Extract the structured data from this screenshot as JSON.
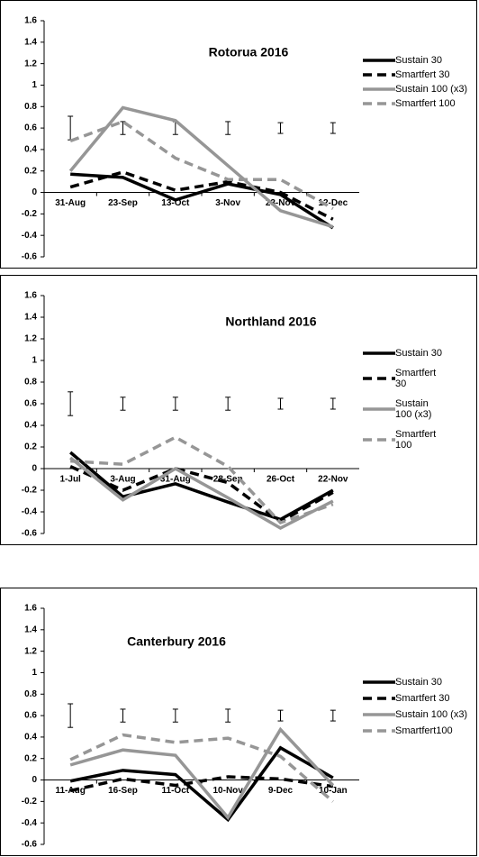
{
  "chart_data": [
    {
      "type": "line",
      "title": "Rotorua 2016",
      "categories": [
        "31-Aug",
        "23-Sep",
        "13-Oct",
        "3-Nov",
        "23-Nov",
        "12-Dec"
      ],
      "series": [
        {
          "name": "Sustain 30",
          "color": "#000000",
          "style": "solid",
          "values": [
            0.17,
            0.14,
            -0.07,
            0.08,
            -0.02,
            -0.33
          ]
        },
        {
          "name": "Smartfert 30",
          "color": "#000000",
          "style": "dashed",
          "values": [
            0.05,
            0.19,
            0.02,
            0.1,
            0,
            -0.25
          ]
        },
        {
          "name": "Sustain 100 (x3)",
          "color": "#969696",
          "style": "solid",
          "values": [
            0.2,
            0.79,
            0.67,
            0.25,
            -0.17,
            -0.32
          ]
        },
        {
          "name": "Smartfert 100",
          "color": "#969696",
          "style": "dashed",
          "values": [
            0.48,
            0.66,
            0.32,
            0.12,
            0.12,
            -0.15
          ]
        }
      ],
      "error_bars": {
        "color": "#000000",
        "values": [
          0.6,
          0.6,
          0.6,
          0.6,
          0.6,
          0.6
        ],
        "errors": [
          0.11,
          0.06,
          0.06,
          0.06,
          0.05,
          0.05
        ]
      },
      "ylim": [
        -0.6,
        1.6
      ],
      "yticks": [
        -0.6,
        -0.4,
        -0.2,
        0,
        0.2,
        0.4,
        0.6,
        0.8,
        1,
        1.2,
        1.4,
        1.6
      ],
      "grid": false
    },
    {
      "type": "line",
      "title": "Northland 2016",
      "categories": [
        "1-Jul",
        "3-Aug",
        "31-Aug",
        "28-Sep",
        "26-Oct",
        "22-Nov"
      ],
      "series": [
        {
          "name": "Sustain 30",
          "color": "#000000",
          "style": "solid",
          "values": [
            0.15,
            -0.26,
            -0.14,
            -0.31,
            -0.47,
            -0.2
          ]
        },
        {
          "name": "Smartfert 30",
          "color": "#000000",
          "style": "dashed",
          "values": [
            0.02,
            -0.2,
            0,
            -0.13,
            -0.49,
            -0.22
          ]
        },
        {
          "name": "Sustain 100 (x3)",
          "color": "#969696",
          "style": "solid",
          "values": [
            0.1,
            -0.29,
            0,
            -0.27,
            -0.55,
            -0.3
          ]
        },
        {
          "name": "Smartfert 100",
          "color": "#969696",
          "style": "dashed",
          "values": [
            0.07,
            0.04,
            0.29,
            0.02,
            -0.5,
            -0.33
          ]
        }
      ],
      "error_bars": {
        "color": "#000000",
        "values": [
          0.6,
          0.6,
          0.6,
          0.6,
          0.6,
          0.6
        ],
        "errors": [
          0.11,
          0.06,
          0.06,
          0.06,
          0.05,
          0.05
        ]
      },
      "ylim": [
        -0.6,
        1.6
      ],
      "yticks": [
        -0.6,
        -0.4,
        -0.2,
        0,
        0.2,
        0.4,
        0.6,
        0.8,
        1,
        1.2,
        1.4,
        1.6
      ],
      "grid": false
    },
    {
      "type": "line",
      "title": "Canterbury 2016",
      "categories": [
        "11-Aug",
        "16-Sep",
        "11-Oct",
        "10-Nov",
        "9-Dec",
        "10-Jan"
      ],
      "series": [
        {
          "name": "Sustain 30",
          "color": "#000000",
          "style": "solid",
          "values": [
            -0.01,
            0.09,
            0.05,
            -0.37,
            0.3,
            0.02
          ]
        },
        {
          "name": "Smartfert 30",
          "color": "#000000",
          "style": "dashed",
          "values": [
            -0.1,
            0.01,
            -0.05,
            0.03,
            0.01,
            -0.06
          ]
        },
        {
          "name": "Sustain 100 (x3)",
          "color": "#969696",
          "style": "solid",
          "values": [
            0.14,
            0.28,
            0.23,
            -0.35,
            0.47,
            -0.05
          ]
        },
        {
          "name": "Smartfert100",
          "color": "#969696",
          "style": "dashed",
          "values": [
            0.19,
            0.42,
            0.35,
            0.39,
            0.22,
            -0.2
          ]
        }
      ],
      "error_bars": {
        "color": "#000000",
        "values": [
          0.6,
          0.6,
          0.6,
          0.6,
          0.6,
          0.6
        ],
        "errors": [
          0.11,
          0.06,
          0.06,
          0.06,
          0.05,
          0.05
        ]
      },
      "ylim": [
        -0.6,
        1.6
      ],
      "yticks": [
        -0.6,
        -0.4,
        -0.2,
        0,
        0.2,
        0.4,
        0.6,
        0.8,
        1,
        1.2,
        1.4,
        1.6
      ],
      "grid": false
    }
  ]
}
